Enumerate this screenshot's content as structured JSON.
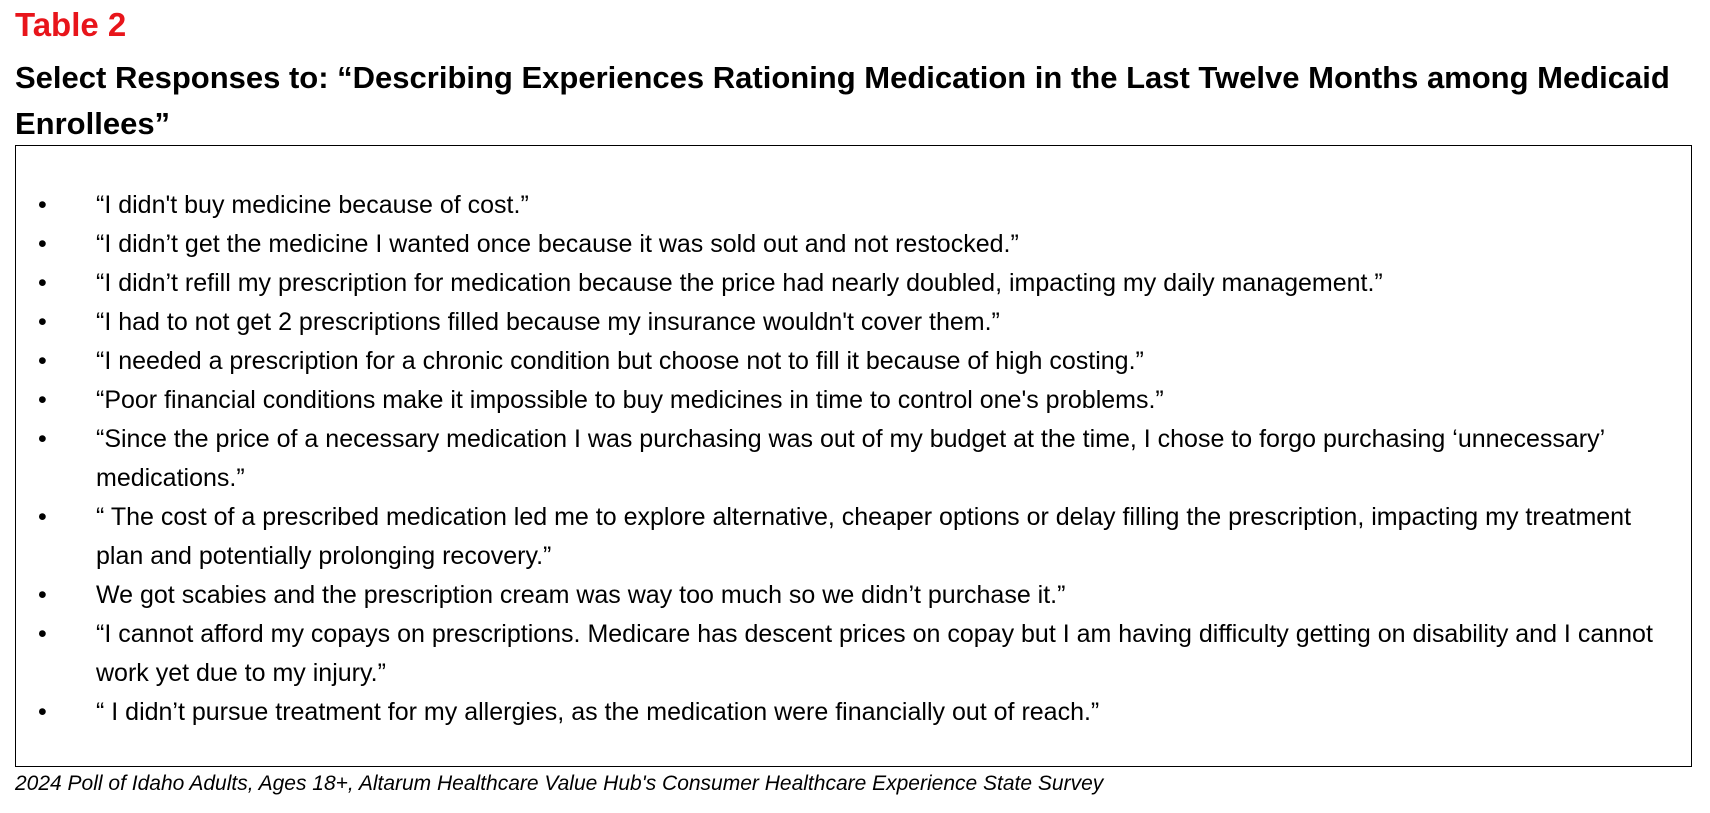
{
  "header": {
    "label": "Table 2",
    "title": "Select Responses to: “Describing Experiences Rationing Medication in the Last Twelve Months among Medicaid Enrollees”"
  },
  "items": [
    "“I didn't buy medicine because of cost.”",
    "“I didn’t get the medicine I wanted once because it was sold out and not restocked.”",
    "“I didn’t refill my prescription for medication because the price had nearly doubled, impacting my daily management.”",
    "“I had to not get 2 prescriptions filled because my insurance wouldn't cover them.”",
    "“I needed a prescription for a chronic condition but choose not to fill it because of high costing.”",
    "“Poor financial conditions make it impossible to buy medicines in time to control one's problems.”",
    "“Since the price of a necessary medication I was purchasing was out of my budget at the time, I chose to forgo purchasing ‘unnecessary’ medications.”",
    "“ The cost of a prescribed medication led me to explore alternative, cheaper options or delay filling the prescription, impacting my treatment plan and potentially prolonging recovery.”",
    "We got scabies and the prescription cream was way too much so we didn’t purchase it.”",
    "“I cannot afford my copays on prescriptions. Medicare has descent prices on copay but I am having difficulty getting on disability and I cannot work yet due to my injury.”",
    "“ I didn’t pursue treatment for my allergies, as the medication were financially out of reach.”"
  ],
  "source": "2024 Poll of Idaho Adults, Ages 18+, Altarum Healthcare Value Hub's Consumer Healthcare Experience State Survey"
}
